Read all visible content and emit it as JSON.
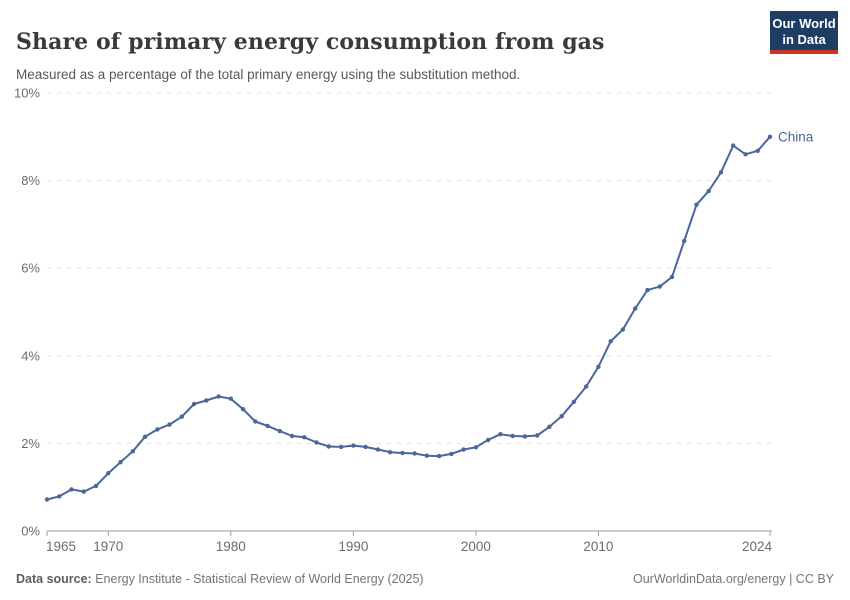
{
  "header": {
    "title": "Share of primary energy consumption from gas",
    "subtitle": "Measured as a percentage of the total primary energy using the substitution method."
  },
  "logo": {
    "line1": "Our World",
    "line2": "in Data",
    "bg_color": "#1d3d63",
    "accent_color": "#cc3425"
  },
  "footer": {
    "source_label": "Data source:",
    "source_text": " Energy Institute - Statistical Review of World Energy (2025)",
    "right_text": "OurWorldinData.org/energy | CC BY"
  },
  "chart_data": {
    "type": "line",
    "title": "Share of primary energy consumption from gas",
    "xlabel": "",
    "ylabel": "",
    "ylim": [
      0,
      10
    ],
    "xlim": [
      1965,
      2024
    ],
    "grid": "horizontal-dashed",
    "legend_position": "end-of-line-label",
    "line_color": "#4a669b",
    "axis_color": "#9e9e9e",
    "grid_color": "#e2e2e2",
    "tick_label_color": "#6c6c6c",
    "yticks": [
      {
        "value": 0,
        "label": "0%"
      },
      {
        "value": 2,
        "label": "2%"
      },
      {
        "value": 4,
        "label": "4%"
      },
      {
        "value": 6,
        "label": "6%"
      },
      {
        "value": 8,
        "label": "8%"
      },
      {
        "value": 10,
        "label": "10%"
      }
    ],
    "xticks": [
      {
        "value": 1965,
        "label": "1965"
      },
      {
        "value": 1970,
        "label": "1970"
      },
      {
        "value": 1980,
        "label": "1980"
      },
      {
        "value": 1990,
        "label": "1990"
      },
      {
        "value": 2000,
        "label": "2000"
      },
      {
        "value": 2010,
        "label": "2010"
      },
      {
        "value": 2024,
        "label": "2024"
      }
    ],
    "x": [
      1965,
      1966,
      1967,
      1968,
      1969,
      1970,
      1971,
      1972,
      1973,
      1974,
      1975,
      1976,
      1977,
      1978,
      1979,
      1980,
      1981,
      1982,
      1983,
      1984,
      1985,
      1986,
      1987,
      1988,
      1989,
      1990,
      1991,
      1992,
      1993,
      1994,
      1995,
      1996,
      1997,
      1998,
      1999,
      2000,
      2001,
      2002,
      2003,
      2004,
      2005,
      2006,
      2007,
      2008,
      2009,
      2010,
      2011,
      2012,
      2013,
      2014,
      2015,
      2016,
      2017,
      2018,
      2019,
      2020,
      2021,
      2022,
      2023,
      2024
    ],
    "series": [
      {
        "name": "China",
        "color": "#4a669b",
        "values": [
          0.72,
          0.79,
          0.95,
          0.9,
          1.03,
          1.32,
          1.57,
          1.82,
          2.15,
          2.32,
          2.43,
          2.61,
          2.9,
          2.98,
          3.07,
          3.02,
          2.78,
          2.5,
          2.4,
          2.28,
          2.17,
          2.14,
          2.02,
          1.93,
          1.92,
          1.95,
          1.92,
          1.86,
          1.8,
          1.78,
          1.77,
          1.72,
          1.71,
          1.76,
          1.86,
          1.91,
          2.08,
          2.21,
          2.17,
          2.16,
          2.18,
          2.38,
          2.62,
          2.95,
          3.3,
          3.75,
          4.33,
          4.6,
          5.08,
          5.5,
          5.58,
          5.8,
          6.62,
          7.45,
          7.76,
          8.19,
          8.8,
          8.6,
          8.68,
          9.0
        ]
      }
    ]
  }
}
